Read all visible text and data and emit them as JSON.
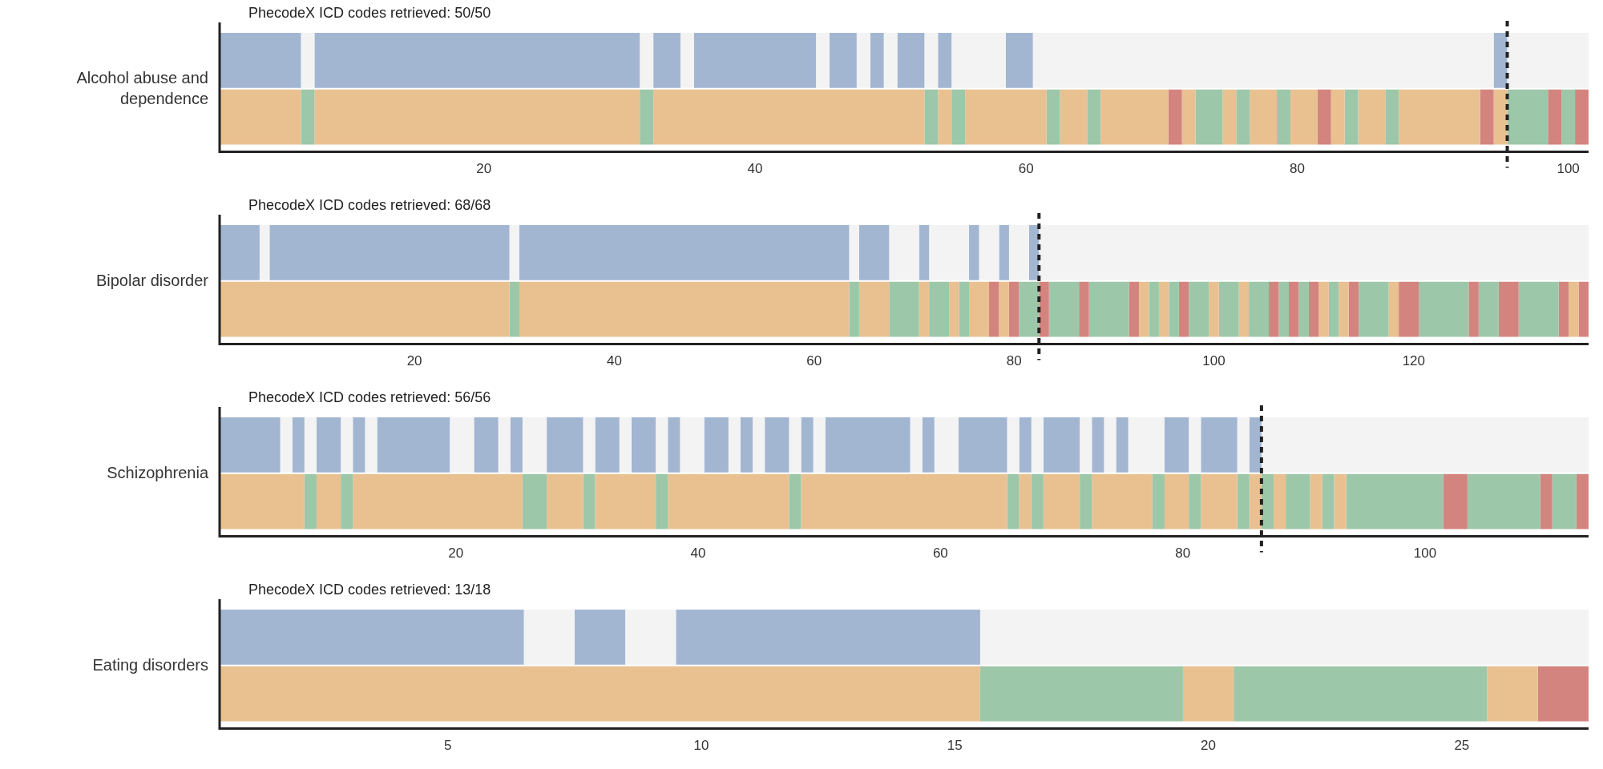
{
  "chart_data": [
    {
      "type": "bar",
      "orientation": "horizontal",
      "title": "PhecodeX ICD codes retrieved: 50/50",
      "ylabel": "Alcohol abuse and dependence",
      "categories": [
        null,
        null
      ],
      "xlim": [
        0.5,
        101.5
      ],
      "xticks": [
        20,
        40,
        60,
        80,
        100
      ],
      "legend": false,
      "ref_lines": [
        {
          "axis": "x",
          "value": 95.5,
          "color": "#222222",
          "line_style": "dashed"
        }
      ],
      "series": [
        {
          "values": [
            6,
            6
          ],
          "base": [
            0.5,
            0.5
          ],
          "colors": [
            "#a2b6d2",
            "#e9c191"
          ]
        },
        {
          "values": [
            1,
            1
          ],
          "base": [
            6.5,
            6.5
          ],
          "colors": [
            "#f3f3f3",
            "#9dc7a9"
          ]
        },
        {
          "values": [
            24,
            24
          ],
          "base": [
            7.5,
            7.5
          ],
          "colors": [
            "#a2b6d2",
            "#e9c191"
          ]
        },
        {
          "values": [
            1,
            1
          ],
          "base": [
            31.5,
            31.5
          ],
          "colors": [
            "#f3f3f3",
            "#9dc7a9"
          ]
        },
        {
          "values": [
            2,
            20
          ],
          "base": [
            32.5,
            32.5
          ],
          "colors": [
            "#a2b6d2",
            "#e9c191"
          ]
        },
        {
          "values": [
            1,
            1
          ],
          "base": [
            34.5,
            52.5
          ],
          "colors": [
            "#f3f3f3",
            "#9dc7a9"
          ]
        },
        {
          "values": [
            9,
            1
          ],
          "base": [
            35.5,
            53.5
          ],
          "colors": [
            "#a2b6d2",
            "#e9c191"
          ]
        },
        {
          "values": [
            1,
            1
          ],
          "base": [
            44.5,
            54.5
          ],
          "colors": [
            "#f3f3f3",
            "#9dc7a9"
          ]
        },
        {
          "values": [
            2,
            6
          ],
          "base": [
            45.5,
            55.5
          ],
          "colors": [
            "#a2b6d2",
            "#e9c191"
          ]
        },
        {
          "values": [
            1,
            1
          ],
          "base": [
            47.5,
            61.5
          ],
          "colors": [
            "#f3f3f3",
            "#9dc7a9"
          ]
        },
        {
          "values": [
            1,
            2
          ],
          "base": [
            48.5,
            62.5
          ],
          "colors": [
            "#a2b6d2",
            "#e9c191"
          ]
        },
        {
          "values": [
            1,
            1
          ],
          "base": [
            49.5,
            64.5
          ],
          "colors": [
            "#f3f3f3",
            "#9dc7a9"
          ]
        },
        {
          "values": [
            2,
            5
          ],
          "base": [
            50.5,
            65.5
          ],
          "colors": [
            "#a2b6d2",
            "#e9c191"
          ]
        },
        {
          "values": [
            1,
            1
          ],
          "base": [
            52.5,
            70.5
          ],
          "colors": [
            "#f3f3f3",
            "#d4847f"
          ]
        },
        {
          "values": [
            1,
            1
          ],
          "base": [
            53.5,
            71.5
          ],
          "colors": [
            "#a2b6d2",
            "#e9c191"
          ]
        },
        {
          "values": [
            4,
            2
          ],
          "base": [
            54.5,
            72.5
          ],
          "colors": [
            "#f3f3f3",
            "#9dc7a9"
          ]
        },
        {
          "values": [
            2,
            1
          ],
          "base": [
            58.5,
            74.5
          ],
          "colors": [
            "#a2b6d2",
            "#e9c191"
          ]
        },
        {
          "values": [
            34,
            1
          ],
          "base": [
            60.5,
            75.5
          ],
          "colors": [
            "#f3f3f3",
            "#9dc7a9"
          ]
        },
        {
          "values": [
            1,
            2
          ],
          "base": [
            94.5,
            76.5
          ],
          "colors": [
            "#a2b6d2",
            "#e9c191"
          ]
        },
        {
          "values": [
            6,
            1
          ],
          "base": [
            95.5,
            78.5
          ],
          "colors": [
            "#f3f3f3",
            "#9dc7a9"
          ]
        },
        {
          "values": [
            null,
            2
          ],
          "base": [
            null,
            79.5
          ],
          "colors": [
            null,
            "#e9c191"
          ]
        },
        {
          "values": [
            null,
            1
          ],
          "base": [
            null,
            81.5
          ],
          "colors": [
            null,
            "#d4847f"
          ]
        },
        {
          "values": [
            null,
            1
          ],
          "base": [
            null,
            82.5
          ],
          "colors": [
            null,
            "#e9c191"
          ]
        },
        {
          "values": [
            null,
            1
          ],
          "base": [
            null,
            83.5
          ],
          "colors": [
            null,
            "#9dc7a9"
          ]
        },
        {
          "values": [
            null,
            2
          ],
          "base": [
            null,
            84.5
          ],
          "colors": [
            null,
            "#e9c191"
          ]
        },
        {
          "values": [
            null,
            1
          ],
          "base": [
            null,
            86.5
          ],
          "colors": [
            null,
            "#9dc7a9"
          ]
        },
        {
          "values": [
            null,
            6
          ],
          "base": [
            null,
            87.5
          ],
          "colors": [
            null,
            "#e9c191"
          ]
        },
        {
          "values": [
            null,
            1
          ],
          "base": [
            null,
            93.5
          ],
          "colors": [
            null,
            "#d4847f"
          ]
        },
        {
          "values": [
            null,
            1
          ],
          "base": [
            null,
            94.5
          ],
          "colors": [
            null,
            "#e9c191"
          ]
        },
        {
          "values": [
            null,
            3
          ],
          "base": [
            null,
            95.5
          ],
          "colors": [
            null,
            "#9dc7a9"
          ]
        },
        {
          "values": [
            null,
            1
          ],
          "base": [
            null,
            98.5
          ],
          "colors": [
            null,
            "#d4847f"
          ]
        },
        {
          "values": [
            null,
            1
          ],
          "base": [
            null,
            99.5
          ],
          "colors": [
            null,
            "#9dc7a9"
          ]
        },
        {
          "values": [
            null,
            1
          ],
          "base": [
            null,
            100.5
          ],
          "colors": [
            null,
            "#d4847f"
          ]
        }
      ]
    },
    {
      "type": "bar",
      "orientation": "horizontal",
      "title": "PhecodeX ICD codes retrieved: 68/68",
      "ylabel": "Bipolar disorder",
      "categories": [
        null,
        null
      ],
      "xlim": [
        0.5,
        137.5
      ],
      "xticks": [
        20,
        40,
        60,
        80,
        100,
        120
      ],
      "legend": false,
      "ref_lines": [
        {
          "axis": "x",
          "value": 82.5,
          "color": "#222222",
          "line_style": "dashed"
        }
      ],
      "series": [
        {
          "values": [
            4,
            29
          ],
          "base": [
            0.5,
            0.5
          ],
          "colors": [
            "#a2b6d2",
            "#e9c191"
          ]
        },
        {
          "values": [
            1,
            1
          ],
          "base": [
            4.5,
            29.5
          ],
          "colors": [
            "#f3f3f3",
            "#9dc7a9"
          ]
        },
        {
          "values": [
            24,
            33
          ],
          "base": [
            5.5,
            30.5
          ],
          "colors": [
            "#a2b6d2",
            "#e9c191"
          ]
        },
        {
          "values": [
            1,
            1
          ],
          "base": [
            29.5,
            63.5
          ],
          "colors": [
            "#f3f3f3",
            "#9dc7a9"
          ]
        },
        {
          "values": [
            33,
            3
          ],
          "base": [
            30.5,
            64.5
          ],
          "colors": [
            "#a2b6d2",
            "#e9c191"
          ]
        },
        {
          "values": [
            1,
            3
          ],
          "base": [
            63.5,
            67.5
          ],
          "colors": [
            "#f3f3f3",
            "#9dc7a9"
          ]
        },
        {
          "values": [
            3,
            1
          ],
          "base": [
            64.5,
            70.5
          ],
          "colors": [
            "#a2b6d2",
            "#e9c191"
          ]
        },
        {
          "values": [
            3,
            2
          ],
          "base": [
            67.5,
            71.5
          ],
          "colors": [
            "#f3f3f3",
            "#9dc7a9"
          ]
        },
        {
          "values": [
            1,
            1
          ],
          "base": [
            70.5,
            73.5
          ],
          "colors": [
            "#a2b6d2",
            "#e9c191"
          ]
        },
        {
          "values": [
            4,
            1
          ],
          "base": [
            71.5,
            74.5
          ],
          "colors": [
            "#f3f3f3",
            "#9dc7a9"
          ]
        },
        {
          "values": [
            1,
            2
          ],
          "base": [
            75.5,
            75.5
          ],
          "colors": [
            "#a2b6d2",
            "#e9c191"
          ]
        },
        {
          "values": [
            2,
            1
          ],
          "base": [
            76.5,
            77.5
          ],
          "colors": [
            "#f3f3f3",
            "#d4847f"
          ]
        },
        {
          "values": [
            1,
            1
          ],
          "base": [
            78.5,
            78.5
          ],
          "colors": [
            "#a2b6d2",
            "#e9c191"
          ]
        },
        {
          "values": [
            2,
            1
          ],
          "base": [
            79.5,
            79.5
          ],
          "colors": [
            "#f3f3f3",
            "#d4847f"
          ]
        },
        {
          "values": [
            1,
            2
          ],
          "base": [
            81.5,
            80.5
          ],
          "colors": [
            "#a2b6d2",
            "#9dc7a9"
          ]
        },
        {
          "values": [
            55,
            1
          ],
          "base": [
            82.5,
            82.5
          ],
          "colors": [
            "#f3f3f3",
            "#d4847f"
          ]
        },
        {
          "values": [
            null,
            3
          ],
          "base": [
            null,
            83.5
          ],
          "colors": [
            null,
            "#9dc7a9"
          ]
        },
        {
          "values": [
            null,
            1
          ],
          "base": [
            null,
            86.5
          ],
          "colors": [
            null,
            "#d4847f"
          ]
        },
        {
          "values": [
            null,
            4
          ],
          "base": [
            null,
            87.5
          ],
          "colors": [
            null,
            "#9dc7a9"
          ]
        },
        {
          "values": [
            null,
            1
          ],
          "base": [
            null,
            91.5
          ],
          "colors": [
            null,
            "#d4847f"
          ]
        },
        {
          "values": [
            null,
            1
          ],
          "base": [
            null,
            92.5
          ],
          "colors": [
            null,
            "#e9c191"
          ]
        },
        {
          "values": [
            null,
            1
          ],
          "base": [
            null,
            93.5
          ],
          "colors": [
            null,
            "#9dc7a9"
          ]
        },
        {
          "values": [
            null,
            1
          ],
          "base": [
            null,
            94.5
          ],
          "colors": [
            null,
            "#e9c191"
          ]
        },
        {
          "values": [
            null,
            1
          ],
          "base": [
            null,
            95.5
          ],
          "colors": [
            null,
            "#9dc7a9"
          ]
        },
        {
          "values": [
            null,
            1
          ],
          "base": [
            null,
            96.5
          ],
          "colors": [
            null,
            "#d4847f"
          ]
        },
        {
          "values": [
            null,
            2
          ],
          "base": [
            null,
            97.5
          ],
          "colors": [
            null,
            "#9dc7a9"
          ]
        },
        {
          "values": [
            null,
            1
          ],
          "base": [
            null,
            99.5
          ],
          "colors": [
            null,
            "#e9c191"
          ]
        },
        {
          "values": [
            null,
            2
          ],
          "base": [
            null,
            100.5
          ],
          "colors": [
            null,
            "#9dc7a9"
          ]
        },
        {
          "values": [
            null,
            1
          ],
          "base": [
            null,
            102.5
          ],
          "colors": [
            null,
            "#e9c191"
          ]
        },
        {
          "values": [
            null,
            2
          ],
          "base": [
            null,
            103.5
          ],
          "colors": [
            null,
            "#9dc7a9"
          ]
        },
        {
          "values": [
            null,
            1
          ],
          "base": [
            null,
            105.5
          ],
          "colors": [
            null,
            "#d4847f"
          ]
        },
        {
          "values": [
            null,
            1
          ],
          "base": [
            null,
            106.5
          ],
          "colors": [
            null,
            "#9dc7a9"
          ]
        },
        {
          "values": [
            null,
            1
          ],
          "base": [
            null,
            107.5
          ],
          "colors": [
            null,
            "#d4847f"
          ]
        },
        {
          "values": [
            null,
            1
          ],
          "base": [
            null,
            108.5
          ],
          "colors": [
            null,
            "#9dc7a9"
          ]
        },
        {
          "values": [
            null,
            1
          ],
          "base": [
            null,
            109.5
          ],
          "colors": [
            null,
            "#d4847f"
          ]
        },
        {
          "values": [
            null,
            1
          ],
          "base": [
            null,
            110.5
          ],
          "colors": [
            null,
            "#e9c191"
          ]
        },
        {
          "values": [
            null,
            1
          ],
          "base": [
            null,
            111.5
          ],
          "colors": [
            null,
            "#9dc7a9"
          ]
        },
        {
          "values": [
            null,
            1
          ],
          "base": [
            null,
            112.5
          ],
          "colors": [
            null,
            "#e9c191"
          ]
        },
        {
          "values": [
            null,
            1
          ],
          "base": [
            null,
            113.5
          ],
          "colors": [
            null,
            "#d4847f"
          ]
        },
        {
          "values": [
            null,
            3
          ],
          "base": [
            null,
            114.5
          ],
          "colors": [
            null,
            "#9dc7a9"
          ]
        },
        {
          "values": [
            null,
            1
          ],
          "base": [
            null,
            117.5
          ],
          "colors": [
            null,
            "#e9c191"
          ]
        },
        {
          "values": [
            null,
            2
          ],
          "base": [
            null,
            118.5
          ],
          "colors": [
            null,
            "#d4847f"
          ]
        },
        {
          "values": [
            null,
            5
          ],
          "base": [
            null,
            120.5
          ],
          "colors": [
            null,
            "#9dc7a9"
          ]
        },
        {
          "values": [
            null,
            1
          ],
          "base": [
            null,
            125.5
          ],
          "colors": [
            null,
            "#d4847f"
          ]
        },
        {
          "values": [
            null,
            2
          ],
          "base": [
            null,
            126.5
          ],
          "colors": [
            null,
            "#9dc7a9"
          ]
        },
        {
          "values": [
            null,
            2
          ],
          "base": [
            null,
            128.5
          ],
          "colors": [
            null,
            "#d4847f"
          ]
        },
        {
          "values": [
            null,
            4
          ],
          "base": [
            null,
            130.5
          ],
          "colors": [
            null,
            "#9dc7a9"
          ]
        },
        {
          "values": [
            null,
            1
          ],
          "base": [
            null,
            134.5
          ],
          "colors": [
            null,
            "#d4847f"
          ]
        },
        {
          "values": [
            null,
            1
          ],
          "base": [
            null,
            135.5
          ],
          "colors": [
            null,
            "#e9c191"
          ]
        },
        {
          "values": [
            null,
            1
          ],
          "base": [
            null,
            136.5
          ],
          "colors": [
            null,
            "#d4847f"
          ]
        }
      ]
    },
    {
      "type": "bar",
      "orientation": "horizontal",
      "title": "PhecodeX ICD codes retrieved: 56/56",
      "ylabel": "Schizophrenia",
      "categories": [
        null,
        null
      ],
      "xlim": [
        0.5,
        113.5
      ],
      "xticks": [
        20,
        40,
        60,
        80,
        100
      ],
      "legend": false,
      "ref_lines": [
        {
          "axis": "x",
          "value": 86.5,
          "color": "#222222",
          "line_style": "dashed"
        }
      ],
      "series": [
        {
          "values": [
            5,
            7
          ],
          "base": [
            0.5,
            0.5
          ],
          "colors": [
            "#a2b6d2",
            "#e9c191"
          ]
        },
        {
          "values": [
            1,
            1
          ],
          "base": [
            5.5,
            7.5
          ],
          "colors": [
            "#f3f3f3",
            "#9dc7a9"
          ]
        },
        {
          "values": [
            1,
            2
          ],
          "base": [
            6.5,
            8.5
          ],
          "colors": [
            "#a2b6d2",
            "#e9c191"
          ]
        },
        {
          "values": [
            1,
            1
          ],
          "base": [
            7.5,
            10.5
          ],
          "colors": [
            "#f3f3f3",
            "#9dc7a9"
          ]
        },
        {
          "values": [
            2,
            14
          ],
          "base": [
            8.5,
            11.5
          ],
          "colors": [
            "#a2b6d2",
            "#e9c191"
          ]
        },
        {
          "values": [
            1,
            2
          ],
          "base": [
            10.5,
            25.5
          ],
          "colors": [
            "#f3f3f3",
            "#9dc7a9"
          ]
        },
        {
          "values": [
            1,
            3
          ],
          "base": [
            11.5,
            27.5
          ],
          "colors": [
            "#a2b6d2",
            "#e9c191"
          ]
        },
        {
          "values": [
            1,
            1
          ],
          "base": [
            12.5,
            30.5
          ],
          "colors": [
            "#f3f3f3",
            "#9dc7a9"
          ]
        },
        {
          "values": [
            6,
            5
          ],
          "base": [
            13.5,
            31.5
          ],
          "colors": [
            "#a2b6d2",
            "#e9c191"
          ]
        },
        {
          "values": [
            2,
            1
          ],
          "base": [
            19.5,
            36.5
          ],
          "colors": [
            "#f3f3f3",
            "#9dc7a9"
          ]
        },
        {
          "values": [
            2,
            10
          ],
          "base": [
            21.5,
            37.5
          ],
          "colors": [
            "#a2b6d2",
            "#e9c191"
          ]
        },
        {
          "values": [
            1,
            1
          ],
          "base": [
            23.5,
            47.5
          ],
          "colors": [
            "#f3f3f3",
            "#9dc7a9"
          ]
        },
        {
          "values": [
            1,
            17
          ],
          "base": [
            24.5,
            48.5
          ],
          "colors": [
            "#a2b6d2",
            "#e9c191"
          ]
        },
        {
          "values": [
            2,
            1
          ],
          "base": [
            25.5,
            65.5
          ],
          "colors": [
            "#f3f3f3",
            "#9dc7a9"
          ]
        },
        {
          "values": [
            3,
            1
          ],
          "base": [
            27.5,
            66.5
          ],
          "colors": [
            "#a2b6d2",
            "#e9c191"
          ]
        },
        {
          "values": [
            1,
            1
          ],
          "base": [
            30.5,
            67.5
          ],
          "colors": [
            "#f3f3f3",
            "#9dc7a9"
          ]
        },
        {
          "values": [
            2,
            3
          ],
          "base": [
            31.5,
            68.5
          ],
          "colors": [
            "#a2b6d2",
            "#e9c191"
          ]
        },
        {
          "values": [
            1,
            1
          ],
          "base": [
            33.5,
            71.5
          ],
          "colors": [
            "#f3f3f3",
            "#9dc7a9"
          ]
        },
        {
          "values": [
            2,
            5
          ],
          "base": [
            34.5,
            72.5
          ],
          "colors": [
            "#a2b6d2",
            "#e9c191"
          ]
        },
        {
          "values": [
            1,
            1
          ],
          "base": [
            36.5,
            77.5
          ],
          "colors": [
            "#f3f3f3",
            "#9dc7a9"
          ]
        },
        {
          "values": [
            1,
            2
          ],
          "base": [
            37.5,
            78.5
          ],
          "colors": [
            "#a2b6d2",
            "#e9c191"
          ]
        },
        {
          "values": [
            2,
            1
          ],
          "base": [
            38.5,
            80.5
          ],
          "colors": [
            "#f3f3f3",
            "#9dc7a9"
          ]
        },
        {
          "values": [
            2,
            3
          ],
          "base": [
            40.5,
            81.5
          ],
          "colors": [
            "#a2b6d2",
            "#e9c191"
          ]
        },
        {
          "values": [
            1,
            1
          ],
          "base": [
            42.5,
            84.5
          ],
          "colors": [
            "#f3f3f3",
            "#9dc7a9"
          ]
        },
        {
          "values": [
            1,
            1
          ],
          "base": [
            43.5,
            85.5
          ],
          "colors": [
            "#a2b6d2",
            "#e9c191"
          ]
        },
        {
          "values": [
            1,
            1
          ],
          "base": [
            44.5,
            86.5
          ],
          "colors": [
            "#f3f3f3",
            "#9dc7a9"
          ]
        },
        {
          "values": [
            2,
            1
          ],
          "base": [
            45.5,
            87.5
          ],
          "colors": [
            "#a2b6d2",
            "#e9c191"
          ]
        },
        {
          "values": [
            1,
            2
          ],
          "base": [
            47.5,
            88.5
          ],
          "colors": [
            "#f3f3f3",
            "#9dc7a9"
          ]
        },
        {
          "values": [
            1,
            1
          ],
          "base": [
            48.5,
            90.5
          ],
          "colors": [
            "#a2b6d2",
            "#e9c191"
          ]
        },
        {
          "values": [
            1,
            1
          ],
          "base": [
            49.5,
            91.5
          ],
          "colors": [
            "#f3f3f3",
            "#9dc7a9"
          ]
        },
        {
          "values": [
            7,
            1
          ],
          "base": [
            50.5,
            92.5
          ],
          "colors": [
            "#a2b6d2",
            "#e9c191"
          ]
        },
        {
          "values": [
            1,
            8
          ],
          "base": [
            57.5,
            93.5
          ],
          "colors": [
            "#f3f3f3",
            "#9dc7a9"
          ]
        },
        {
          "values": [
            1,
            2
          ],
          "base": [
            58.5,
            101.5
          ],
          "colors": [
            "#a2b6d2",
            "#d4847f"
          ]
        },
        {
          "values": [
            2,
            6
          ],
          "base": [
            59.5,
            103.5
          ],
          "colors": [
            "#f3f3f3",
            "#9dc7a9"
          ]
        },
        {
          "values": [
            4,
            1
          ],
          "base": [
            61.5,
            109.5
          ],
          "colors": [
            "#a2b6d2",
            "#d4847f"
          ]
        },
        {
          "values": [
            1,
            2
          ],
          "base": [
            65.5,
            110.5
          ],
          "colors": [
            "#f3f3f3",
            "#9dc7a9"
          ]
        },
        {
          "values": [
            1,
            1
          ],
          "base": [
            66.5,
            112.5
          ],
          "colors": [
            "#a2b6d2",
            "#d4847f"
          ]
        },
        {
          "values": [
            1,
            null
          ],
          "base": [
            67.5,
            null
          ],
          "colors": [
            "#f3f3f3",
            null
          ]
        },
        {
          "values": [
            3,
            null
          ],
          "base": [
            68.5,
            null
          ],
          "colors": [
            "#a2b6d2",
            null
          ]
        },
        {
          "values": [
            1,
            null
          ],
          "base": [
            71.5,
            null
          ],
          "colors": [
            "#f3f3f3",
            null
          ]
        },
        {
          "values": [
            1,
            null
          ],
          "base": [
            72.5,
            null
          ],
          "colors": [
            "#a2b6d2",
            null
          ]
        },
        {
          "values": [
            1,
            null
          ],
          "base": [
            73.5,
            null
          ],
          "colors": [
            "#f3f3f3",
            null
          ]
        },
        {
          "values": [
            1,
            null
          ],
          "base": [
            74.5,
            null
          ],
          "colors": [
            "#a2b6d2",
            null
          ]
        },
        {
          "values": [
            3,
            null
          ],
          "base": [
            75.5,
            null
          ],
          "colors": [
            "#f3f3f3",
            null
          ]
        },
        {
          "values": [
            2,
            null
          ],
          "base": [
            78.5,
            null
          ],
          "colors": [
            "#a2b6d2",
            null
          ]
        },
        {
          "values": [
            1,
            null
          ],
          "base": [
            80.5,
            null
          ],
          "colors": [
            "#f3f3f3",
            null
          ]
        },
        {
          "values": [
            3,
            null
          ],
          "base": [
            81.5,
            null
          ],
          "colors": [
            "#a2b6d2",
            null
          ]
        },
        {
          "values": [
            1,
            null
          ],
          "base": [
            84.5,
            null
          ],
          "colors": [
            "#f3f3f3",
            null
          ]
        },
        {
          "values": [
            1,
            null
          ],
          "base": [
            85.5,
            null
          ],
          "colors": [
            "#a2b6d2",
            null
          ]
        },
        {
          "values": [
            27,
            null
          ],
          "base": [
            86.5,
            null
          ],
          "colors": [
            "#f3f3f3",
            null
          ]
        }
      ]
    },
    {
      "type": "bar",
      "orientation": "horizontal",
      "title": "PhecodeX ICD codes retrieved: 13/18",
      "ylabel": "Eating disorders",
      "categories": [
        null,
        null
      ],
      "xlim": [
        0.5,
        27.5
      ],
      "xticks": [
        5,
        10,
        15,
        20,
        25
      ],
      "legend": false,
      "series": [
        {
          "values": [
            6,
            15
          ],
          "base": [
            0.5,
            0.5
          ],
          "colors": [
            "#a2b6d2",
            "#e9c191"
          ]
        },
        {
          "values": [
            1,
            4
          ],
          "base": [
            6.5,
            15.5
          ],
          "colors": [
            "#f3f3f3",
            "#9dc7a9"
          ]
        },
        {
          "values": [
            1,
            1
          ],
          "base": [
            7.5,
            19.5
          ],
          "colors": [
            "#a2b6d2",
            "#e9c191"
          ]
        },
        {
          "values": [
            1,
            5
          ],
          "base": [
            8.5,
            20.5
          ],
          "colors": [
            "#f3f3f3",
            "#9dc7a9"
          ]
        },
        {
          "values": [
            6,
            1
          ],
          "base": [
            9.5,
            25.5
          ],
          "colors": [
            "#a2b6d2",
            "#e9c191"
          ]
        },
        {
          "values": [
            12,
            1
          ],
          "base": [
            15.5,
            26.5
          ],
          "colors": [
            "#f3f3f3",
            "#d4847f"
          ]
        }
      ]
    }
  ]
}
